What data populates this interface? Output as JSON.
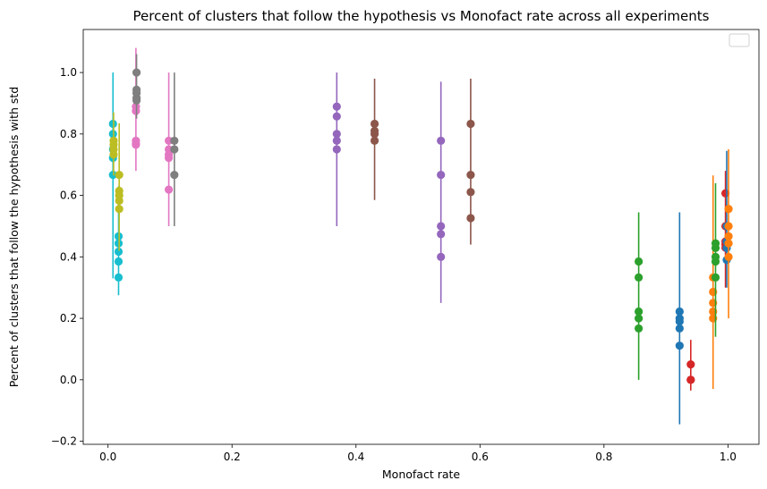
{
  "chart_data": {
    "type": "scatter",
    "title": "Percent of clusters that follow the hypothesis vs Monofact rate across all experiments",
    "xlabel": "Monofact rate",
    "ylabel": "Percent of clusters that follow the hypothesis with std",
    "xlim": [
      -0.04,
      1.05
    ],
    "ylim": [
      -0.21,
      1.14
    ],
    "xticks": [
      0.0,
      0.2,
      0.4,
      0.6,
      0.8,
      1.0
    ],
    "xtick_labels": [
      "0.0",
      "0.2",
      "0.4",
      "0.6",
      "0.8",
      "1.0"
    ],
    "yticks": [
      -0.2,
      0.0,
      0.2,
      0.4,
      0.6,
      0.8,
      1.0
    ],
    "ytick_labels": [
      "−0.2",
      "0.0",
      "0.2",
      "0.4",
      "0.6",
      "0.8",
      "1.0"
    ],
    "grid": false,
    "legend": "top-right (empty)",
    "error_bars": true,
    "groups": [
      {
        "color": "#17becf",
        "x": 0.008,
        "y": [
          0.833,
          0.8,
          0.75,
          0.722,
          0.667
        ],
        "err_low": 0.33,
        "err_high": 1.0
      },
      {
        "color": "#17becf",
        "x": 0.017,
        "y": [
          0.467,
          0.444,
          0.417,
          0.385,
          0.333
        ],
        "err_low": 0.275,
        "err_high": 0.63
      },
      {
        "color": "#bcbd22",
        "x": 0.009,
        "y": [
          0.778,
          0.765,
          0.75,
          0.733
        ],
        "err_low": 0.665,
        "err_high": 0.87
      },
      {
        "color": "#bcbd22",
        "x": 0.018,
        "y": [
          0.667,
          0.615,
          0.6,
          0.583,
          0.556
        ],
        "err_low": 0.42,
        "err_high": 0.835
      },
      {
        "color": "#e377c2",
        "x": 0.045,
        "y": [
          0.889,
          0.875,
          0.778,
          0.765,
          0.769
        ],
        "err_low": 0.68,
        "err_high": 1.08
      },
      {
        "color": "#7f7f7f",
        "x": 0.046,
        "y": [
          1.0,
          0.944,
          0.933,
          0.917,
          0.909
        ],
        "err_low": 0.85,
        "err_high": 1.06
      },
      {
        "color": "#e377c2",
        "x": 0.098,
        "y": [
          0.778,
          0.75,
          0.733,
          0.722,
          0.619
        ],
        "err_low": 0.5,
        "err_high": 1.0
      },
      {
        "color": "#7f7f7f",
        "x": 0.107,
        "y": [
          0.778,
          0.75,
          0.667
        ],
        "err_low": 0.5,
        "err_high": 1.0
      },
      {
        "color": "#9467bd",
        "x": 0.369,
        "y": [
          0.889,
          0.857,
          0.8,
          0.778,
          0.75
        ],
        "err_low": 0.5,
        "err_high": 1.0
      },
      {
        "color": "#8c564b",
        "x": 0.43,
        "y": [
          0.833,
          0.81,
          0.8,
          0.778
        ],
        "err_low": 0.585,
        "err_high": 0.98
      },
      {
        "color": "#9467bd",
        "x": 0.537,
        "y": [
          0.778,
          0.667,
          0.5,
          0.474,
          0.4
        ],
        "err_low": 0.25,
        "err_high": 0.97
      },
      {
        "color": "#8c564b",
        "x": 0.585,
        "y": [
          0.833,
          0.667,
          0.611,
          0.526
        ],
        "err_low": 0.44,
        "err_high": 0.98
      },
      {
        "color": "#2ca02c",
        "x": 0.856,
        "y": [
          0.385,
          0.333,
          0.222,
          0.2,
          0.167
        ],
        "err_low": 0.0,
        "err_high": 0.545
      },
      {
        "color": "#1f77b4",
        "x": 0.922,
        "y": [
          0.222,
          0.2,
          0.19,
          0.167,
          0.111
        ],
        "err_low": -0.145,
        "err_high": 0.545
      },
      {
        "color": "#d62728",
        "x": 0.94,
        "y": [
          0.05,
          0.0,
          0.0
        ],
        "err_low": -0.035,
        "err_high": 0.13
      },
      {
        "color": "#ff7f0e",
        "x": 0.976,
        "y": [
          0.333,
          0.286,
          0.25,
          0.222,
          0.2
        ],
        "err_low": -0.03,
        "err_high": 0.665
      },
      {
        "color": "#2ca02c",
        "x": 0.98,
        "y": [
          0.444,
          0.429,
          0.4,
          0.385,
          0.333
        ],
        "err_low": 0.14,
        "err_high": 0.64
      },
      {
        "color": "#d62728",
        "x": 0.996,
        "y": [
          0.607,
          0.5,
          0.45,
          0.44,
          0.43
        ],
        "err_low": 0.3,
        "err_high": 0.68
      },
      {
        "color": "#1f77b4",
        "x": 0.998,
        "y": [
          0.5,
          0.45,
          0.429,
          0.39
        ],
        "err_low": 0.3,
        "err_high": 0.745
      },
      {
        "color": "#ff7f0e",
        "x": 1.001,
        "y": [
          0.556,
          0.5,
          0.467,
          0.444,
          0.4
        ],
        "err_low": 0.2,
        "err_high": 0.75
      }
    ]
  }
}
